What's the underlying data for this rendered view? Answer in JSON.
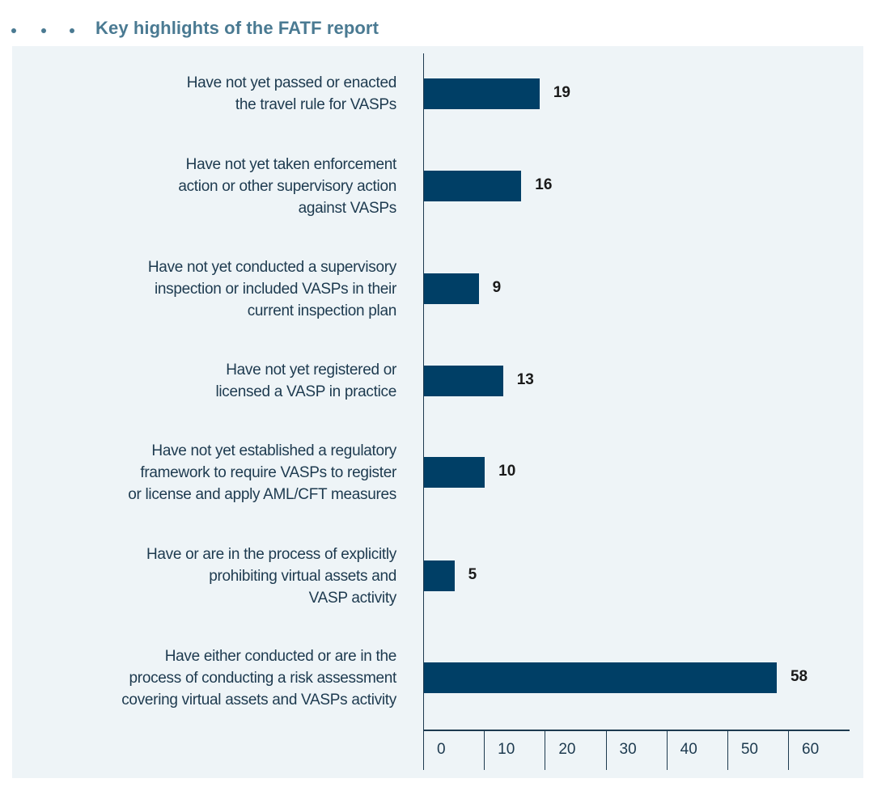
{
  "header": {
    "title": "Key highlights of the FATF report",
    "accent_color": "#4a7a92"
  },
  "chart_data": {
    "type": "bar",
    "orientation": "horizontal",
    "title": "Key highlights of the FATF report",
    "xlabel": "",
    "ylabel": "",
    "categories": [
      "Have not yet passed or enacted\nthe travel rule for VASPs",
      "Have not yet taken enforcement\naction or other supervisory action\nagainst VASPs",
      "Have not yet conducted a supervisory\ninspection or included VASPs in their\ncurrent inspection plan",
      "Have not yet registered or\nlicensed a VASP in practice",
      "Have not yet established a regulatory\nframework to require VASPs to register\nor license and apply AML/CFT measures",
      "Have or are in the process of explicitly\nprohibiting virtual assets and\nVASP activity",
      "Have either conducted or are in the\nprocess of conducting a risk assessment\ncovering virtual assets and VASPs activity"
    ],
    "values": [
      19,
      16,
      9,
      13,
      10,
      5,
      58
    ],
    "xlim": [
      0,
      60
    ],
    "x_ticks": [
      "0",
      "10",
      "20",
      "30",
      "40",
      "50",
      "60"
    ],
    "grid": false,
    "legend": "none",
    "bar_color": "#003f66",
    "background_color": "#eef4f7"
  }
}
